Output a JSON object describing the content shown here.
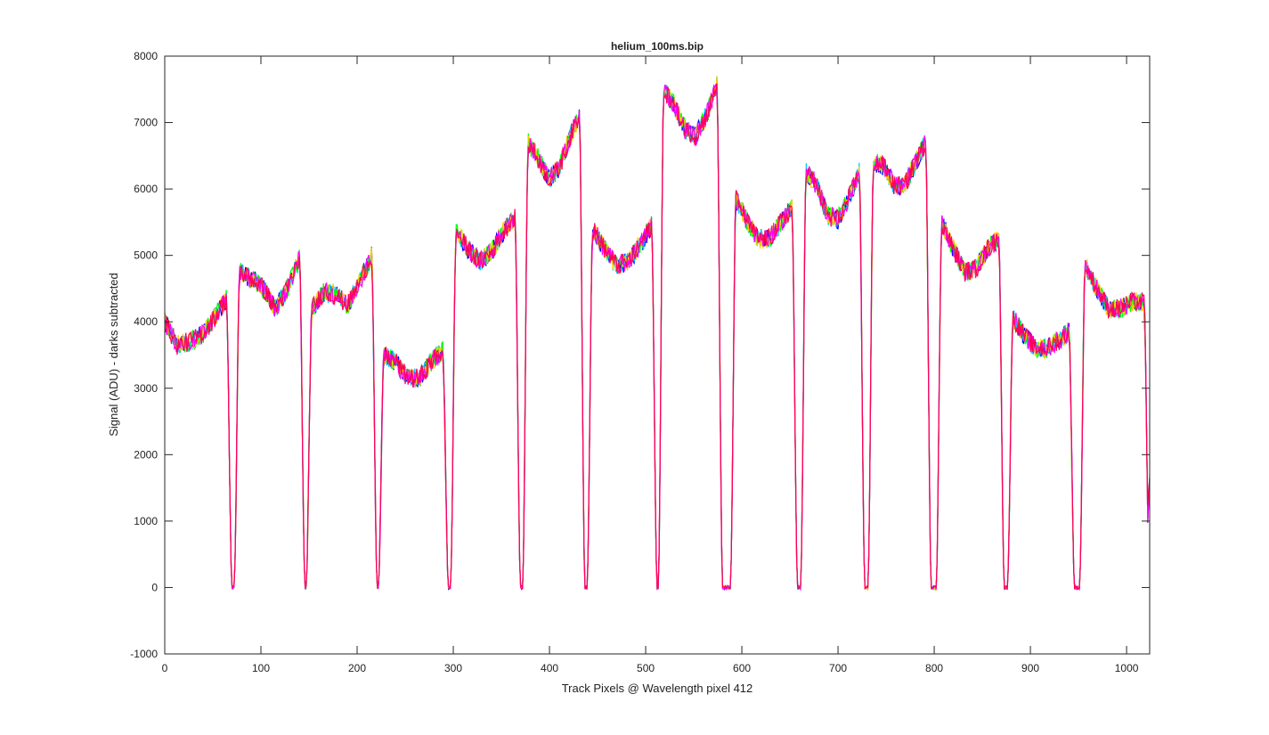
{
  "chart_data": {
    "type": "line",
    "title": "helium_100ms.bip",
    "xlabel": "Track Pixels @ Wavelength pixel 412",
    "ylabel": "Signal (ADU) - darks subtracted",
    "xlim": [
      0,
      1024
    ],
    "ylim": [
      -1000,
      8000
    ],
    "xticks": [
      0,
      100,
      200,
      300,
      400,
      500,
      600,
      700,
      800,
      900,
      1000
    ],
    "yticks": [
      -1000,
      0,
      1000,
      2000,
      3000,
      4000,
      5000,
      6000,
      7000,
      8000
    ],
    "grid": false,
    "legend": "none",
    "box": true,
    "colors": [
      "#0000ff",
      "#00ccff",
      "#00ff00",
      "#ffcc00",
      "#ff00ff",
      "#ff0055"
    ],
    "segments": [
      {
        "x0": 0,
        "x1": 64,
        "y": [
          4000,
          3650,
          3700,
          3800,
          4050,
          4350
        ]
      },
      {
        "x0": 78,
        "x1": 140,
        "y": [
          4750,
          4650,
          4500,
          4200,
          4500,
          4950
        ]
      },
      {
        "x0": 153,
        "x1": 215,
        "y": [
          4200,
          4450,
          4400,
          4250,
          4600,
          5000
        ]
      },
      {
        "x0": 228,
        "x1": 289,
        "y": [
          3500,
          3400,
          3150,
          3150,
          3400,
          3550
        ]
      },
      {
        "x0": 303,
        "x1": 364,
        "y": [
          5350,
          5100,
          4900,
          5050,
          5350,
          5600
        ]
      },
      {
        "x0": 378,
        "x1": 431,
        "y": [
          6700,
          6450,
          6150,
          6300,
          6750,
          7100
        ]
      },
      {
        "x0": 445,
        "x1": 506,
        "y": [
          5400,
          5100,
          4850,
          4900,
          5150,
          5450
        ]
      },
      {
        "x0": 519,
        "x1": 574,
        "y": [
          7500,
          7250,
          6900,
          6800,
          7100,
          7550
        ]
      },
      {
        "x0": 594,
        "x1": 652,
        "y": [
          5850,
          5500,
          5250,
          5250,
          5500,
          5700
        ]
      },
      {
        "x0": 667,
        "x1": 722,
        "y": [
          6250,
          6050,
          5600,
          5550,
          5850,
          6250
        ]
      },
      {
        "x0": 737,
        "x1": 791,
        "y": [
          6400,
          6350,
          6050,
          6050,
          6400,
          6700
        ]
      },
      {
        "x0": 808,
        "x1": 867,
        "y": [
          5500,
          5100,
          4750,
          4800,
          5100,
          5250
        ]
      },
      {
        "x0": 882,
        "x1": 940,
        "y": [
          4050,
          3800,
          3600,
          3600,
          3700,
          3850
        ]
      },
      {
        "x0": 957,
        "x1": 1018,
        "y": [
          4850,
          4500,
          4200,
          4200,
          4300,
          4300
        ]
      }
    ],
    "gap_floor": 0,
    "end_value": 1600,
    "noise_amplitude": 150,
    "series_count": 6
  }
}
